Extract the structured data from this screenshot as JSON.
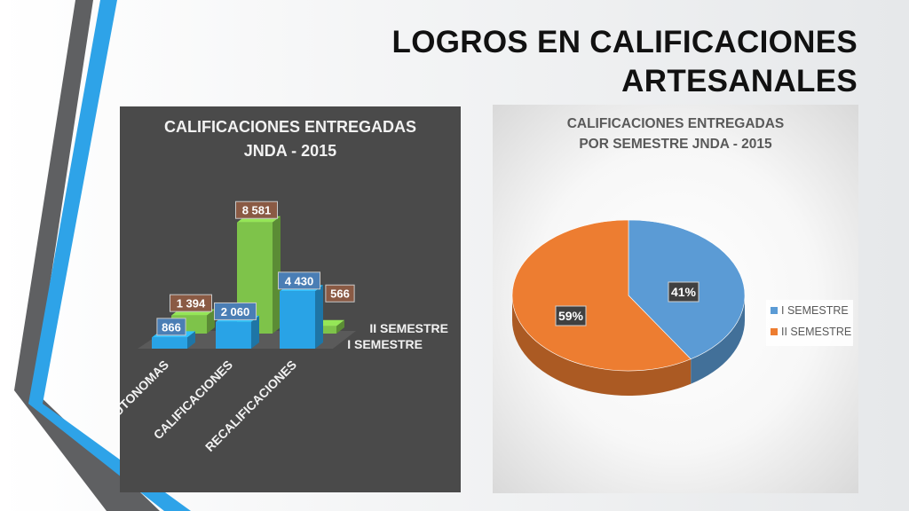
{
  "slide": {
    "title_lines": [
      "LOGROS EN CALIFICACIONES",
      "ARTESANALES"
    ]
  },
  "colors": {
    "stripe_dark": "#5f6062",
    "stripe_blue": "#2ea3e8",
    "bar_panel_bg": "#4a4a4a",
    "series1": "#29a3e6",
    "series2": "#7ec34a",
    "label_blue_bg": "#4a7eb5",
    "label_orange_bg": "#8a5a44",
    "pie_blue": "#5b9bd5",
    "pie_orange": "#ed7d31"
  },
  "chart_data": [
    {
      "type": "bar",
      "style": "3d-clustered-depth",
      "title_lines": [
        "CALIFICACIONES ENTREGADAS",
        "JNDA - 2015"
      ],
      "categories": [
        "AUTONOMAS",
        "CALIFICACIONES",
        "RECALIFICACIONES"
      ],
      "series": [
        {
          "name": "I SEMESTRE",
          "values": [
            866,
            2060,
            4430
          ],
          "labels": [
            "866",
            "2 060",
            "4 430"
          ]
        },
        {
          "name": "II SEMESTRE",
          "values": [
            1394,
            8581,
            566
          ],
          "labels": [
            "1 394",
            "8 581",
            "566"
          ]
        }
      ],
      "ylim": [
        0,
        9000
      ],
      "grid": false,
      "legend": "depth-axis-right"
    },
    {
      "type": "pie",
      "style": "3d",
      "title_lines": [
        "CALIFICACIONES ENTREGADAS",
        "POR SEMESTRE JNDA - 2015"
      ],
      "slices": [
        {
          "name": "I SEMESTRE",
          "value": 41,
          "label": "41%"
        },
        {
          "name": "II SEMESTRE",
          "value": 59,
          "label": "59%"
        }
      ],
      "legend": "right"
    }
  ]
}
